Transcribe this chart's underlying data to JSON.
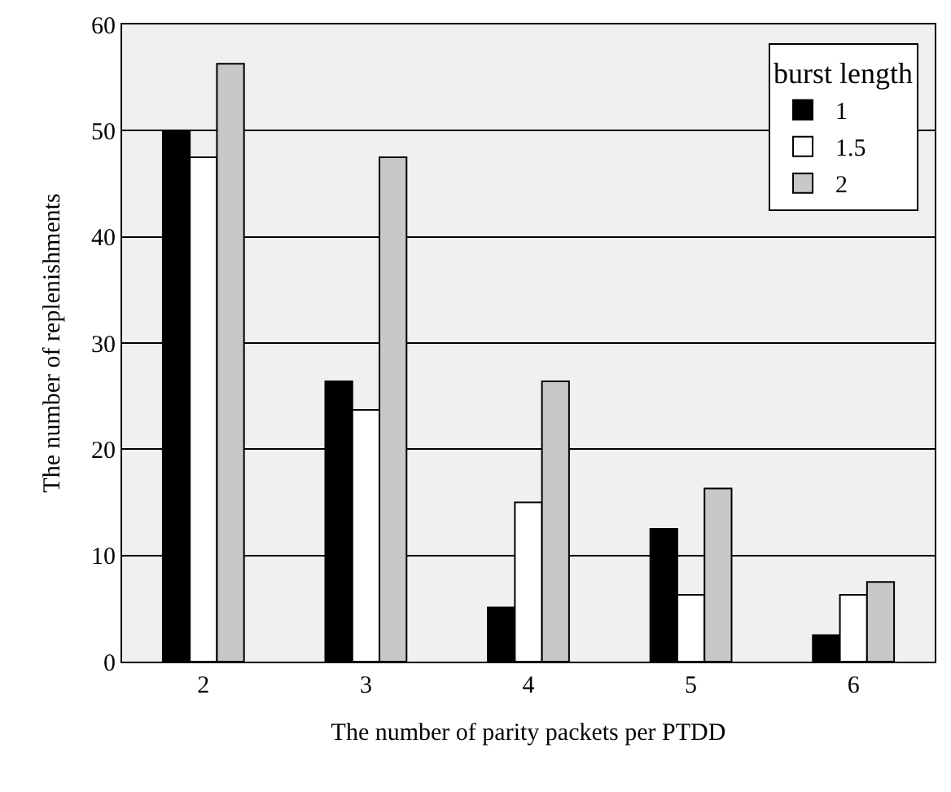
{
  "chart_data": {
    "type": "bar",
    "xlabel": "The number of parity packets per PTDD",
    "ylabel": "The number of replenishments",
    "legend_title": "burst length",
    "categories": [
      "2",
      "3",
      "4",
      "5",
      "6"
    ],
    "series": [
      {
        "name": "1",
        "color": "#000000",
        "values": [
          50,
          26.4,
          5.1,
          12.5,
          2.5
        ]
      },
      {
        "name": "1.5",
        "color": "#ffffff",
        "values": [
          47.5,
          23.7,
          15.0,
          6.3,
          6.3
        ]
      },
      {
        "name": "2",
        "color": "#c8c8c8",
        "values": [
          56.3,
          47.5,
          26.4,
          16.3,
          7.5
        ]
      }
    ],
    "ylim": [
      0,
      60
    ],
    "yticks": [
      0,
      10,
      20,
      30,
      40,
      50,
      60
    ],
    "grid": "y",
    "legend": "top right"
  }
}
